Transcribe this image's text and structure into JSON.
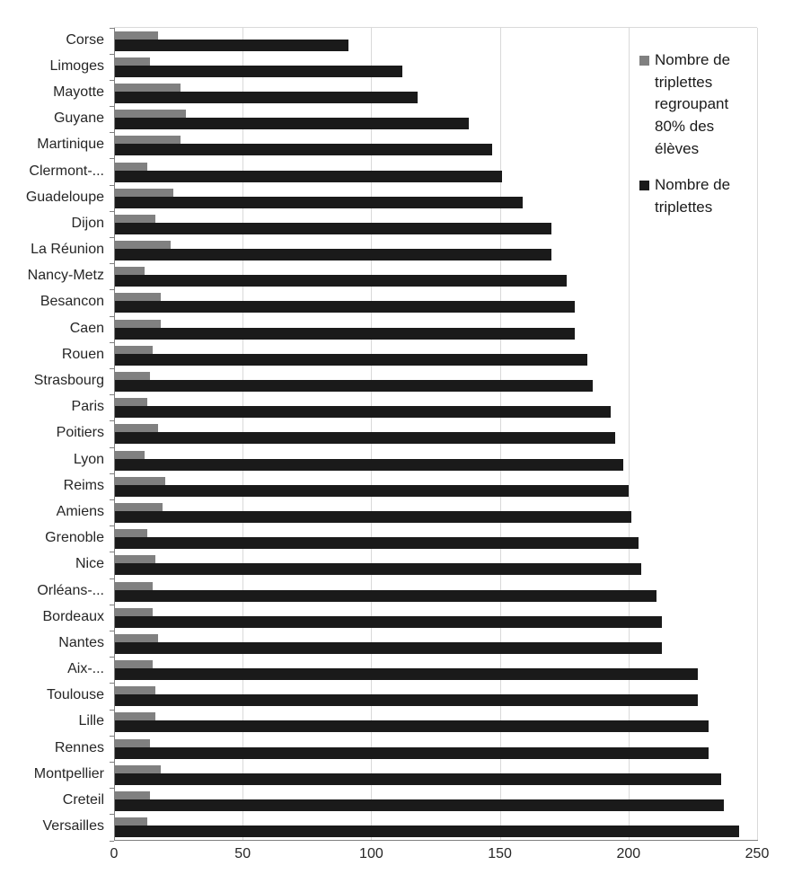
{
  "chart_data": {
    "type": "bar",
    "orientation": "horizontal",
    "title": "",
    "xlabel": "",
    "ylabel": "",
    "xlim": [
      0,
      250
    ],
    "xticks": [
      0,
      50,
      100,
      150,
      200,
      250
    ],
    "grid": "vertical",
    "legend_position": "top-right",
    "categories": [
      "Corse",
      "Limoges",
      "Mayotte",
      "Guyane",
      "Martinique",
      "Clermont-...",
      "Guadeloupe",
      "Dijon",
      "La Réunion",
      "Nancy-Metz",
      "Besancon",
      "Caen",
      "Rouen",
      "Strasbourg",
      "Paris",
      "Poitiers",
      "Lyon",
      "Reims",
      "Amiens",
      "Grenoble",
      "Nice",
      "Orléans-...",
      "Bordeaux",
      "Nantes",
      "Aix-...",
      "Toulouse",
      "Lille",
      "Rennes",
      "Montpellier",
      "Creteil",
      "Versailles"
    ],
    "series": [
      {
        "name": "Nombre de triplettes regroupant 80% des élèves",
        "color": "#808080",
        "values": [
          17,
          14,
          26,
          28,
          26,
          13,
          23,
          16,
          22,
          12,
          18,
          18,
          15,
          14,
          13,
          17,
          12,
          20,
          19,
          13,
          16,
          15,
          15,
          17,
          15,
          16,
          16,
          14,
          18,
          14,
          13
        ]
      },
      {
        "name": "Nombre de triplettes",
        "color": "#1a1a1a",
        "values": [
          91,
          112,
          118,
          138,
          147,
          151,
          159,
          170,
          170,
          176,
          179,
          179,
          184,
          186,
          193,
          195,
          198,
          200,
          201,
          204,
          205,
          211,
          213,
          213,
          227,
          227,
          231,
          231,
          236,
          237,
          243
        ]
      }
    ]
  }
}
